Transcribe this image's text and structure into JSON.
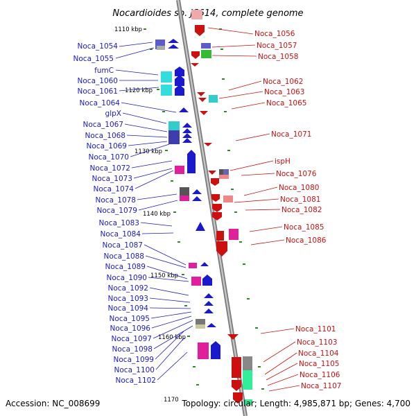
{
  "title": "Nocardioides sp. JS614, complete genome",
  "footer": {
    "accession": "Accession: NC_008699",
    "topology": "Topology: circular; Length: 4,985,871 bp; Genes: 4,700"
  },
  "scale_labels": [
    "1110 kbp",
    "1120 kbp",
    "1130 kbp",
    "1140 kbp",
    "1150 kbp",
    "1160 kbp",
    "1170"
  ],
  "left_labels": [
    "Noca_1054",
    "Noca_1055",
    "fumC",
    "Noca_1060",
    "Noca_1061",
    "Noca_1064",
    "glpX",
    "Noca_1067",
    "Noca_1068",
    "Noca_1069",
    "Noca_1070",
    "Noca_1072",
    "Noca_1073",
    "Noca_1074",
    "Noca_1078",
    "Noca_1079",
    "Noca_1083",
    "Noca_1084",
    "Noca_1087",
    "Noca_1088",
    "Noca_1089",
    "Noca_1090",
    "Noca_1092",
    "Noca_1093",
    "Noca_1094",
    "Noca_1095",
    "Noca_1096",
    "Noca_1097",
    "Noca_1098",
    "Noca_1099",
    "Noca_1100",
    "Noca_1102"
  ],
  "right_labels": [
    "Noca_1056",
    "Noca_1057",
    "Noca_1058",
    "Noca_1062",
    "Noca_1063",
    "Noca_1065",
    "Noca_1071",
    "ispH",
    "Noca_1076",
    "Noca_1080",
    "Noca_1081",
    "Noca_1082",
    "Noca_1085",
    "Noca_1086",
    "Noca_1101",
    "Noca_1103",
    "Noca_1104",
    "Noca_1105",
    "Noca_1106",
    "Noca_1107"
  ],
  "colors": {
    "forward_strand": "#1a1acc",
    "reverse_strand": "#cc1010",
    "backbone": "#999999",
    "tick": "#2e8b22"
  }
}
